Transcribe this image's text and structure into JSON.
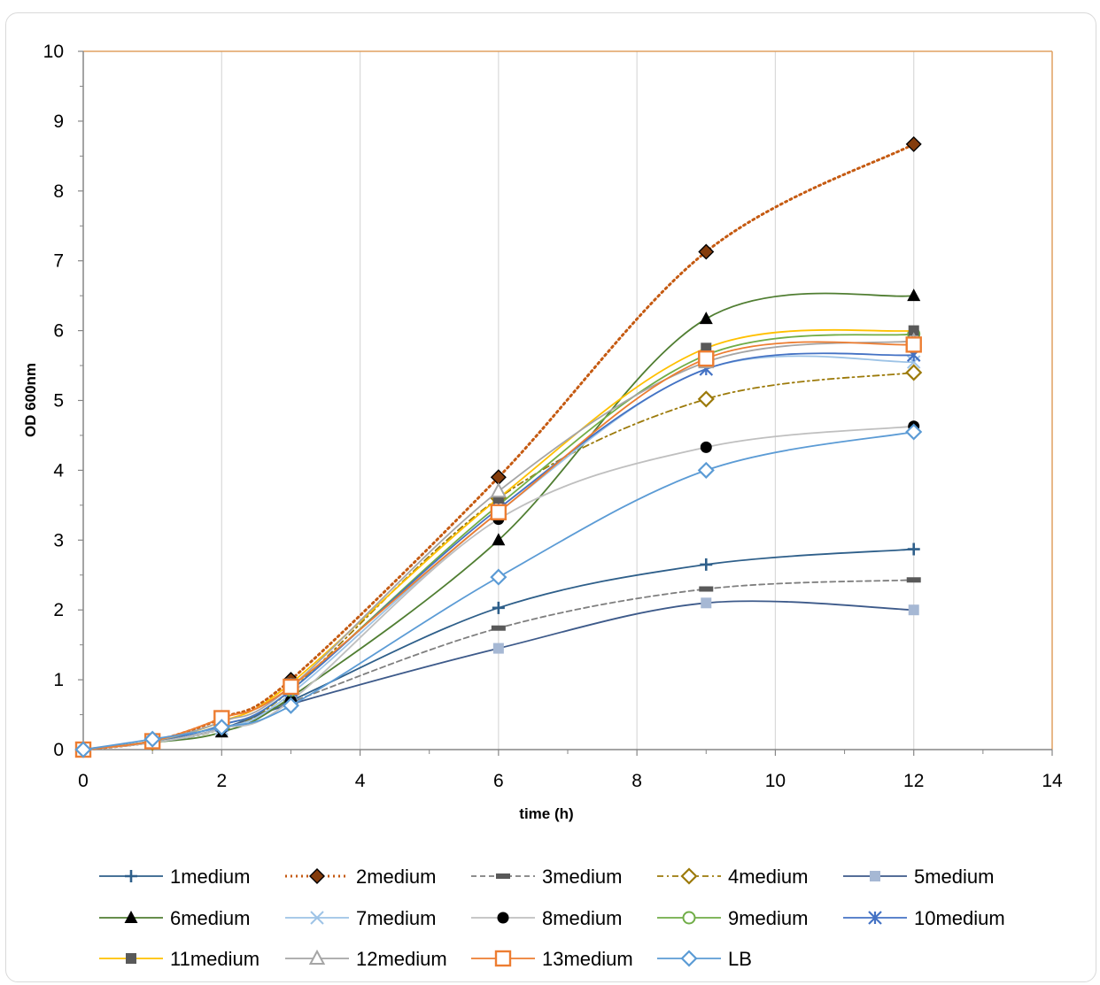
{
  "chart_data": {
    "type": "line",
    "title": "",
    "xlabel": "time (h)",
    "ylabel": "OD 600nm",
    "xlim": [
      0,
      14
    ],
    "ylim": [
      0,
      10
    ],
    "xticks": [
      0,
      2,
      4,
      6,
      8,
      10,
      12,
      14
    ],
    "yticks": [
      0,
      1,
      2,
      3,
      4,
      5,
      6,
      7,
      8,
      9,
      10
    ],
    "grid": "vertical",
    "legend_position": "bottom",
    "x": [
      0,
      1,
      2,
      3,
      6,
      9,
      12
    ],
    "series": [
      {
        "name": "1medium",
        "values": [
          0,
          0.1,
          0.3,
          0.7,
          2.03,
          2.65,
          2.87
        ],
        "color": "#2e5f8a",
        "marker": "plus",
        "dash": "solid"
      },
      {
        "name": "2medium",
        "values": [
          0,
          0.12,
          0.45,
          1.0,
          3.9,
          7.13,
          8.67
        ],
        "color": "#c55a11",
        "marker": "diamond-filled",
        "dash": "dotted"
      },
      {
        "name": "3medium",
        "values": [
          0,
          0.1,
          0.3,
          0.68,
          1.74,
          2.3,
          2.43
        ],
        "color": "#7f7f7f",
        "marker": "dash",
        "dash": "dashed"
      },
      {
        "name": "4medium",
        "values": [
          0,
          0.1,
          0.3,
          0.85,
          3.6,
          5.02,
          5.4
        ],
        "color": "#9c7a0a",
        "marker": "diamond-open",
        "dash": "dashdot"
      },
      {
        "name": "5medium",
        "values": [
          0,
          0.1,
          0.3,
          0.65,
          1.45,
          2.1,
          2.0
        ],
        "color": "#3d5a8a",
        "marker": "square-filled",
        "dash": "solid"
      },
      {
        "name": "6medium",
        "values": [
          0,
          0.1,
          0.25,
          0.75,
          3.0,
          6.17,
          6.5
        ],
        "color": "#507e32",
        "marker": "triangle-filled",
        "dash": "solid"
      },
      {
        "name": "7medium",
        "values": [
          0,
          0.1,
          0.3,
          0.8,
          3.4,
          5.45,
          5.55
        ],
        "color": "#9dc3e6",
        "marker": "cross",
        "dash": "solid"
      },
      {
        "name": "8medium",
        "values": [
          0,
          0.1,
          0.3,
          0.7,
          3.3,
          4.33,
          4.63
        ],
        "color": "#bfbfbf",
        "marker": "circle-filled",
        "dash": "solid"
      },
      {
        "name": "9medium",
        "values": [
          0,
          0.12,
          0.35,
          0.85,
          3.5,
          5.65,
          5.95
        ],
        "color": "#70ad47",
        "marker": "circle-open",
        "dash": "solid"
      },
      {
        "name": "10medium",
        "values": [
          0,
          0.12,
          0.35,
          0.85,
          3.45,
          5.45,
          5.65
        ],
        "color": "#4472c4",
        "marker": "star",
        "dash": "solid"
      },
      {
        "name": "11medium",
        "values": [
          0,
          0.12,
          0.4,
          0.95,
          3.6,
          5.75,
          6.0
        ],
        "color": "#ffc000",
        "marker": "square-filled",
        "dash": "solid"
      },
      {
        "name": "12medium",
        "values": [
          0,
          0.12,
          0.4,
          0.9,
          3.7,
          5.55,
          5.85
        ],
        "color": "#a5a5a5",
        "marker": "triangle-open",
        "dash": "solid"
      },
      {
        "name": "13medium",
        "values": [
          0,
          0.12,
          0.45,
          0.9,
          3.4,
          5.6,
          5.8
        ],
        "color": "#ed7d31",
        "marker": "square-open",
        "dash": "solid"
      },
      {
        "name": "LB",
        "values": [
          0,
          0.15,
          0.32,
          0.63,
          2.47,
          4.0,
          4.55
        ],
        "color": "#5b9bd5",
        "marker": "diamond-open",
        "dash": "solid"
      }
    ]
  }
}
